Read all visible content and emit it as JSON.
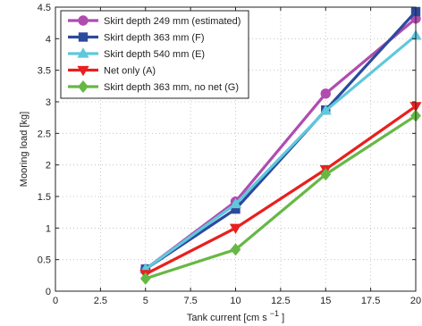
{
  "chart_data": {
    "type": "line",
    "xlabel": "Tank current [cm s",
    "xlabel_superscript": "−1",
    "xlabel_suffix": "]",
    "ylabel": "Mooring load [kg]",
    "xlim": [
      0,
      20
    ],
    "ylim": [
      0,
      4.5
    ],
    "xticks": [
      0,
      2.5,
      5,
      7.5,
      10,
      12.5,
      15,
      17.5,
      20
    ],
    "xtick_labels": [
      "0",
      "2.5",
      "5",
      "7.5",
      "10",
      "12.5",
      "15",
      "17.5",
      "20"
    ],
    "yticks": [
      0,
      0.5,
      1,
      1.5,
      2,
      2.5,
      3,
      3.5,
      4,
      4.5
    ],
    "ytick_labels": [
      "0",
      "0.5",
      "1",
      "1.5",
      "2",
      "2.5",
      "3",
      "3.5",
      "4",
      "4.5"
    ],
    "grid": true,
    "legend_position": "top-left",
    "x": [
      5,
      10,
      15,
      20
    ],
    "series": [
      {
        "name": "Skirt depth 249 mm (estimated)",
        "values": [
          0.35,
          1.42,
          3.13,
          4.32
        ],
        "color": "#b04cb0",
        "marker": "circle"
      },
      {
        "name": "Skirt depth 363 mm (F)",
        "values": [
          0.35,
          1.3,
          2.87,
          4.43
        ],
        "color": "#2c4a9c",
        "marker": "square"
      },
      {
        "name": "Skirt depth 540 mm (E)",
        "values": [
          0.35,
          1.38,
          2.86,
          4.05
        ],
        "color": "#5fc8dc",
        "marker": "triangle-up"
      },
      {
        "name": "Net only (A)",
        "values": [
          0.27,
          1.0,
          1.93,
          2.93
        ],
        "color": "#e8201e",
        "marker": "triangle-down"
      },
      {
        "name": "Skirt depth 363 mm, no net (G)",
        "values": [
          0.2,
          0.66,
          1.85,
          2.78
        ],
        "color": "#66b845",
        "marker": "diamond"
      }
    ]
  }
}
